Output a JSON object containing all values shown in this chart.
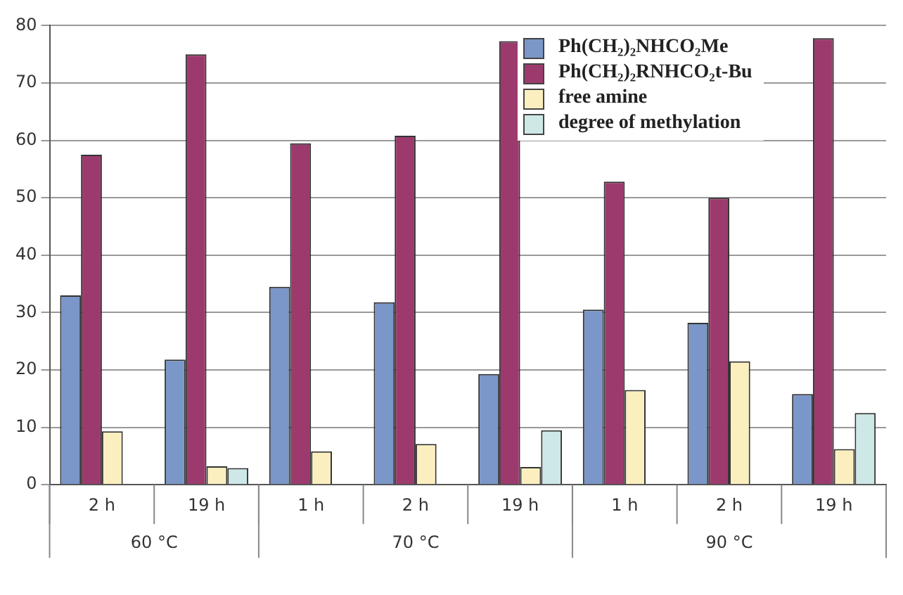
{
  "chart_data": {
    "type": "bar",
    "categories": [
      "2 h",
      "19 h",
      "1 h",
      "2 h",
      "19 h",
      "1 h",
      "2 h",
      "19 h"
    ],
    "series": [
      {
        "name": "Ph(CH₂)₂NHCO₂Me",
        "color": "#7b96c8",
        "values": [
          33,
          21.8,
          34.5,
          31.8,
          19.3,
          30.5,
          28.2,
          15.8
        ]
      },
      {
        "name": "Ph(CH₂)₂RNHCO₂t-Bu",
        "color": "#9c3a6e",
        "values": [
          57.5,
          75,
          59.5,
          60.8,
          77.3,
          52.8,
          50,
          77.8
        ]
      },
      {
        "name": "free amine",
        "color": "#fbefc0",
        "values": [
          9.3,
          3.2,
          5.8,
          7.1,
          3.1,
          16.5,
          21.5,
          6.2
        ]
      },
      {
        "name": "degree of methylation",
        "color": "#cde8e6",
        "values": [
          null,
          2.9,
          null,
          null,
          9.5,
          null,
          null,
          12.5
        ]
      }
    ],
    "annotations": [
      "60 °C",
      "70 °C",
      "90 °C"
    ],
    "ylim": [
      0,
      80
    ],
    "yticks": [
      0,
      10,
      20,
      30,
      40,
      50,
      60,
      70,
      80
    ],
    "grid": "y",
    "legend": "top right"
  }
}
